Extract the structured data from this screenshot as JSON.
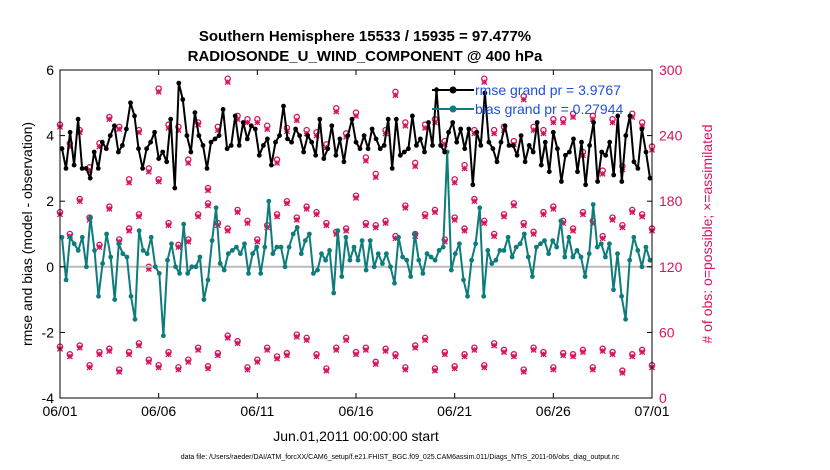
{
  "chart_data": {
    "type": "line",
    "title_line1": "Southern Hemisphere 15533 / 15935 = 97.477%",
    "title_line2": "RADIOSONDE_U_WIND_COMPONENT @ 400 hPa",
    "xlabel": "Jun.01,2011 00:00:00 start",
    "ylabel_left": "rmse and bias (model - observation)",
    "ylabel_right": "# of obs: o=possible; ×=assimilated",
    "footnote": "data file: /Users/raeder/DAI/ATM_forcXX/CAM6_setup/f.e21.FHIST_BGC.f09_025.CAM6assim.011/Diags_NTrS_2011-06/obs_diag_output.nc",
    "xlim": [
      0,
      30
    ],
    "ylim_left": [
      -4,
      6
    ],
    "ylim_right": [
      0,
      300
    ],
    "x_ticks": [
      0,
      5,
      10,
      15,
      20,
      25,
      30
    ],
    "x_tick_labels": [
      "06/01",
      "06/06",
      "06/11",
      "06/16",
      "06/21",
      "06/26",
      "07/01"
    ],
    "y_ticks_left": [
      -4,
      -2,
      0,
      2,
      4,
      6
    ],
    "y_ticks_left_labels": [
      "-4",
      "-2",
      "0",
      "2",
      "4",
      "6"
    ],
    "y_ticks_right": [
      0,
      60,
      120,
      180,
      240,
      300
    ],
    "y_ticks_right_labels": [
      "0",
      "60",
      "120",
      "180",
      "240",
      "300"
    ],
    "legend": [
      {
        "label": "rmse grand pr = 3.9767",
        "color": "#000000"
      },
      {
        "label": "bias grand pr = 0.27944",
        "color": "#0e7c7b"
      }
    ],
    "colors": {
      "rmse": "#000000",
      "bias": "#0e7c7b",
      "obs": "#d6145f",
      "zero": "#bbbbbb"
    },
    "rmse": [
      3.6,
      3.0,
      4.1,
      3.1,
      4.5,
      3.0,
      3.0,
      2.7,
      3.5,
      3.0,
      3.8,
      3.6,
      4.0,
      4.3,
      3.5,
      3.7,
      4.2,
      5.0,
      4.6,
      3.6,
      3.0,
      3.6,
      3.8,
      4.1,
      3.3,
      3.5,
      3.2,
      4.5,
      2.4,
      5.6,
      5.1,
      4.0,
      3.5,
      4.7,
      4.0,
      3.7,
      3.0,
      3.8,
      3.9,
      4.0,
      4.8,
      3.6,
      3.7,
      4.6,
      3.7,
      4.4,
      3.9,
      4.3,
      4.2,
      3.4,
      3.7,
      3.9,
      3.1,
      3.8,
      4.0,
      4.9,
      3.9,
      3.8,
      4.2,
      4.0,
      3.5,
      4.0,
      3.8,
      3.4,
      4.5,
      3.3,
      3.6,
      4.3,
      3.4,
      3.9,
      3.2,
      4.0,
      4.5,
      3.8,
      3.6,
      4.0,
      3.6,
      4.2,
      3.9,
      3.6,
      3.7,
      4.5,
      3.0,
      4.5,
      3.4,
      3.5,
      3.6,
      4.6,
      3.7,
      3.9,
      3.5,
      4.4,
      3.7,
      5.4,
      3.7,
      3.5,
      4.1,
      4.4,
      3.8,
      4.2,
      3.6,
      4.2,
      2.5,
      4.1,
      3.7,
      5.3,
      3.8,
      3.6,
      3.2,
      3.8,
      4.3,
      3.7,
      3.7,
      3.4,
      4.0,
      3.2,
      3.7,
      3.5,
      4.4,
      3.1,
      3.8,
      2.9,
      4.1,
      3.6,
      2.6,
      3.4,
      3.5,
      3.9,
      2.9,
      3.8,
      2.5,
      3.7,
      4.4,
      2.6,
      3.5,
      3.4,
      3.8,
      2.8,
      4.6,
      2.6,
      4.0,
      4.6,
      3.2,
      3.0,
      4.2,
      3.5,
      2.7
    ],
    "bias": [
      0.9,
      -0.4,
      0.9,
      0.7,
      0.5,
      0.9,
      0.0,
      1.5,
      0.5,
      -0.9,
      0.1,
      1.0,
      0.3,
      -1.0,
      0.7,
      0.4,
      0.3,
      -0.9,
      -1.6,
      1.1,
      0.5,
      0.4,
      0.9,
      0.0,
      -0.2,
      -2.1,
      0.2,
      0.7,
      0.0,
      -0.2,
      1.3,
      -0.2,
      0.0,
      0.0,
      0.3,
      -1.0,
      -0.4,
      0.8,
      1.8,
      0.1,
      -0.1,
      0.4,
      0.5,
      0.6,
      0.4,
      0.7,
      -0.2,
      0.4,
      0.6,
      -0.2,
      0.6,
      2.0,
      0.4,
      0.6,
      0.6,
      0.0,
      0.6,
      1.0,
      1.2,
      0.4,
      0.8,
      1.0,
      -0.2,
      -0.1,
      0.4,
      0.2,
      0.5,
      -0.8,
      1.1,
      -0.3,
      0.9,
      0.2,
      0.6,
      0.2,
      0.8,
      -0.1,
      0.8,
      0.0,
      0.4,
      0.1,
      0.4,
      0.0,
      -0.5,
      0.9,
      0.3,
      0.2,
      -0.3,
      1.0,
      0.2,
      -0.2,
      0.4,
      0.3,
      0.2,
      0.5,
      0.6,
      3.5,
      -0.1,
      0.4,
      0.7,
      -0.4,
      -0.9,
      0.2,
      0.7,
      1.8,
      -0.9,
      0.5,
      0.1,
      0.2,
      0.5,
      0.5,
      0.9,
      0.3,
      0.6,
      0.7,
      1.0,
      0.3,
      -0.3,
      0.6,
      0.7,
      0.8,
      0.4,
      0.8,
      0.6,
      1.4,
      0.3,
      0.9,
      0.3,
      0.5,
      0.3,
      -0.3,
      0.4,
      1.9,
      0.6,
      0.7,
      0.3,
      0.7,
      -0.7,
      0.4,
      -0.9,
      -1.6,
      0.2,
      0.9,
      0.5,
      0.0,
      0.6,
      0.2
    ],
    "obs_times": [
      0.0,
      0.5,
      1.0,
      1.5,
      2.0,
      2.5,
      3.0,
      3.5,
      4.0,
      4.5,
      5.0,
      5.5,
      6.0,
      6.5,
      7.0,
      7.5,
      8.0,
      8.5,
      9.0,
      9.5,
      10.0,
      10.5,
      11.0,
      11.5,
      12.0,
      12.5,
      13.0,
      13.5,
      14.0,
      14.5,
      15.0,
      15.5,
      16.0,
      16.5,
      17.0,
      17.5,
      18.0,
      18.5,
      19.0,
      19.5,
      20.0,
      20.5,
      21.0,
      21.5,
      22.0,
      22.5,
      23.0,
      23.5,
      24.0,
      24.5,
      25.0,
      25.5,
      26.0,
      26.5,
      27.0,
      27.5,
      28.0,
      28.5,
      29.0,
      29.5,
      30.0
    ],
    "obs_high_possible": [
      250,
      233,
      245,
      211,
      233,
      257,
      248,
      200,
      245,
      210,
      283,
      250,
      248,
      218,
      252,
      192,
      248,
      292,
      258,
      255,
      255,
      249,
      218,
      247,
      257,
      245,
      243,
      232,
      265,
      242,
      261,
      220,
      205,
      245,
      280,
      252,
      215,
      250,
      255,
      235,
      200,
      213,
      245,
      292,
      245,
      248,
      235,
      276,
      248,
      245,
      255,
      255,
      260,
      225,
      258,
      208,
      255,
      212,
      260,
      252,
      230
    ],
    "obs_high_assim": [
      248,
      230,
      243,
      208,
      230,
      255,
      246,
      197,
      243,
      207,
      280,
      247,
      245,
      215,
      250,
      190,
      245,
      289,
      255,
      252,
      252,
      246,
      215,
      244,
      254,
      242,
      240,
      229,
      262,
      239,
      258,
      217,
      202,
      242,
      277,
      249,
      212,
      247,
      252,
      232,
      197,
      210,
      242,
      289,
      242,
      245,
      232,
      273,
      245,
      242,
      252,
      252,
      257,
      222,
      255,
      205,
      252,
      209,
      257,
      249,
      227
    ],
    "obs_mid_possible": [
      170,
      150,
      182,
      165,
      140,
      175,
      145,
      155,
      168,
      120,
      200,
      160,
      140,
      145,
      168,
      178,
      160,
      155,
      172,
      162,
      145,
      158,
      168,
      180,
      165,
      175,
      170,
      160,
      152,
      155,
      185,
      160,
      158,
      162,
      148,
      176,
      150,
      168,
      172,
      145,
      165,
      155,
      182,
      162,
      150,
      168,
      178,
      160,
      152,
      170,
      175,
      162,
      155,
      170,
      162,
      148,
      165,
      158,
      172,
      168,
      155
    ],
    "obs_mid_assim": [
      168,
      148,
      180,
      163,
      138,
      173,
      143,
      153,
      166,
      118,
      198,
      158,
      138,
      143,
      166,
      176,
      158,
      153,
      170,
      160,
      143,
      156,
      166,
      178,
      163,
      173,
      168,
      158,
      150,
      153,
      183,
      158,
      156,
      160,
      146,
      174,
      148,
      166,
      170,
      143,
      163,
      153,
      180,
      160,
      148,
      166,
      176,
      158,
      150,
      168,
      173,
      160,
      153,
      168,
      160,
      146,
      163,
      156,
      170,
      166,
      153
    ],
    "obs_low_possible": [
      47,
      40,
      48,
      30,
      42,
      45,
      26,
      42,
      50,
      35,
      30,
      42,
      28,
      35,
      46,
      29,
      41,
      57,
      52,
      28,
      35,
      46,
      38,
      41,
      58,
      55,
      40,
      27,
      46,
      55,
      42,
      46,
      33,
      45,
      40,
      28,
      48,
      55,
      27,
      42,
      29,
      40,
      46,
      30,
      50,
      44,
      40,
      26,
      46,
      42,
      28,
      41,
      40,
      44,
      28,
      45,
      42,
      25,
      40,
      44,
      30
    ],
    "obs_low_assim": [
      45,
      38,
      46,
      28,
      40,
      43,
      24,
      40,
      48,
      33,
      28,
      40,
      26,
      33,
      44,
      27,
      39,
      55,
      50,
      26,
      33,
      44,
      36,
      39,
      56,
      53,
      38,
      25,
      44,
      53,
      40,
      44,
      31,
      43,
      38,
      26,
      46,
      53,
      25,
      40,
      27,
      38,
      44,
      28,
      48,
      42,
      38,
      24,
      44,
      40,
      26,
      39,
      38,
      42,
      26,
      43,
      40,
      23,
      38,
      42,
      28
    ]
  }
}
